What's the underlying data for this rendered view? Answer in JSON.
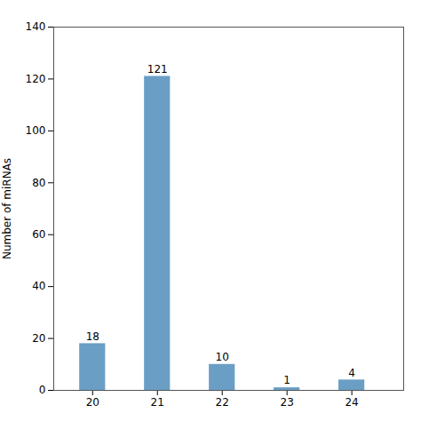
{
  "chart_data": {
    "type": "bar",
    "categories": [
      20,
      21,
      22,
      23,
      24
    ],
    "values": [
      18,
      121,
      10,
      1,
      4
    ],
    "color": "#6a9ec5",
    "ylabel": "Number of miRNAs",
    "ylim": [
      0,
      140
    ],
    "yticks": [
      0,
      20,
      40,
      60,
      80,
      100,
      120,
      140
    ],
    "xlim": [
      19.4,
      24.8
    ],
    "xticks": [
      20,
      21,
      22,
      23,
      24
    ],
    "data_labels": true
  }
}
